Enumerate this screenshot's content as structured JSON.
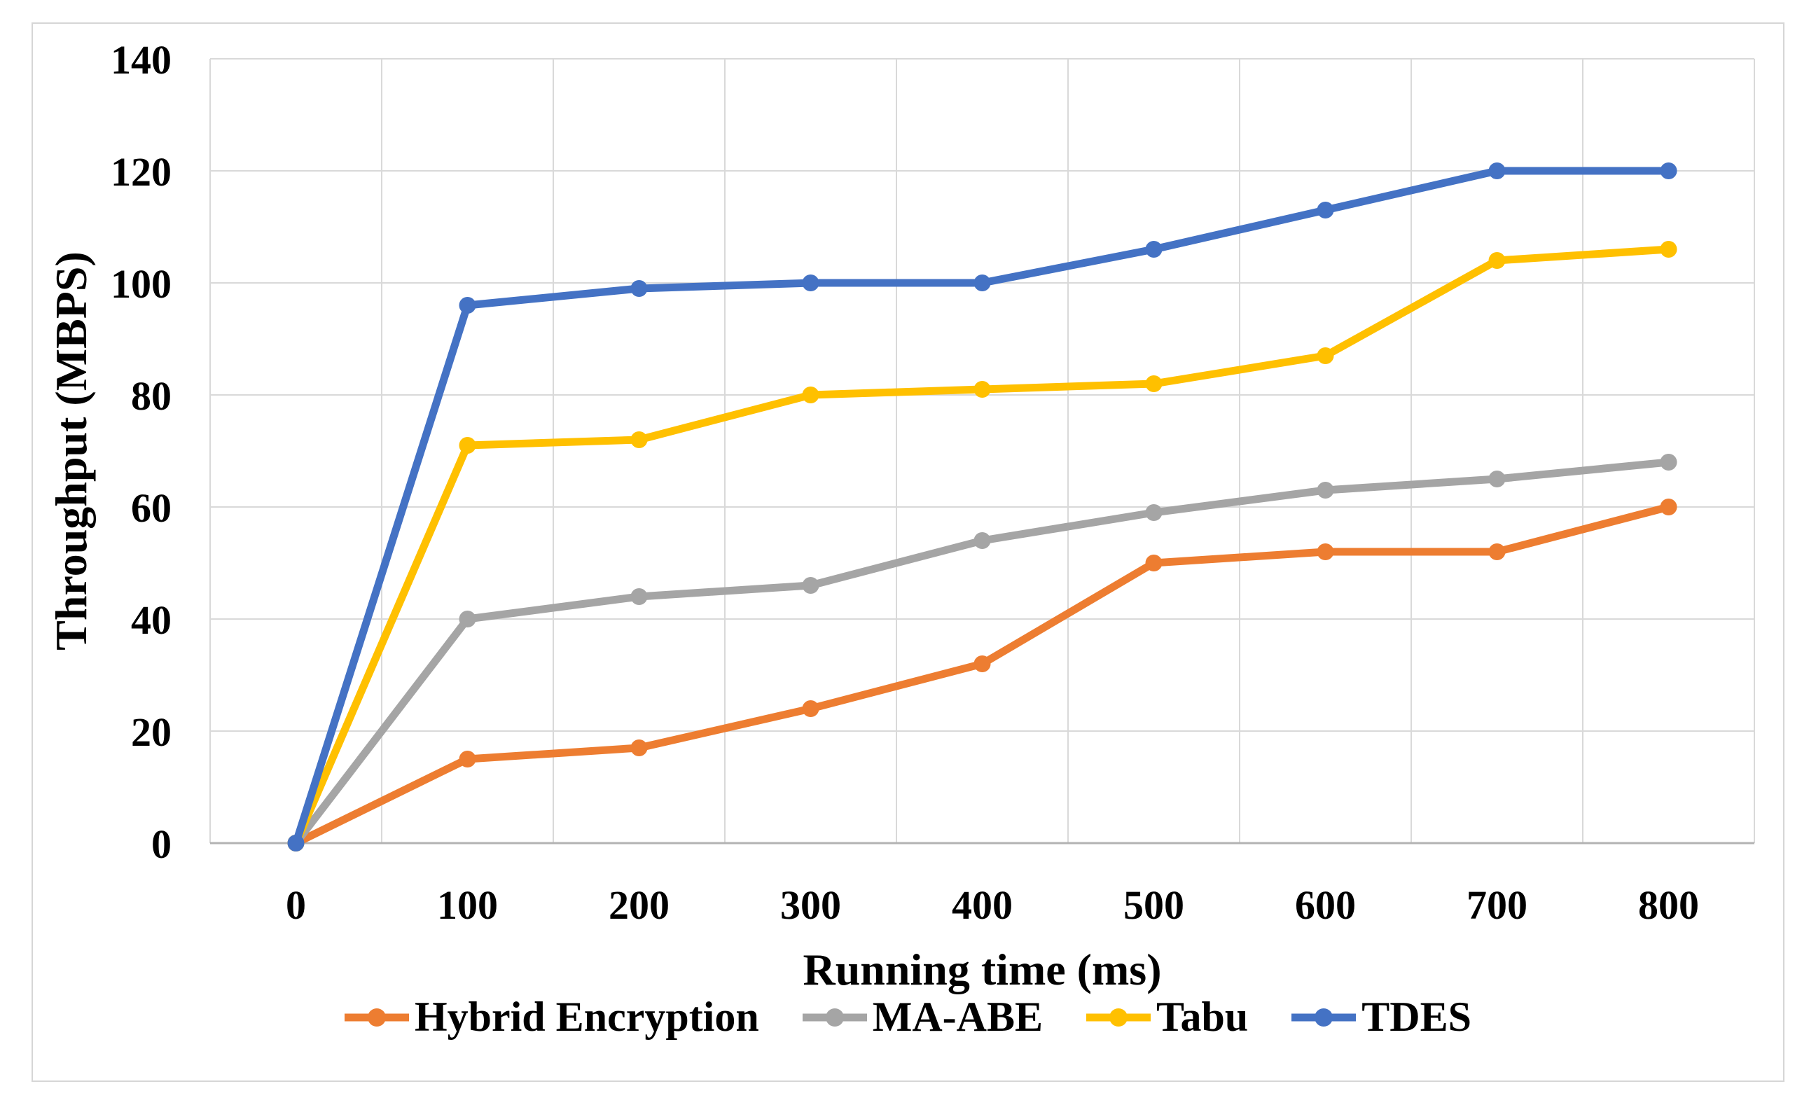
{
  "chart_data": {
    "type": "line",
    "title": "",
    "xlabel": "Running time (ms)",
    "ylabel": "Throughput (MBPS)",
    "categories": [
      "0",
      "100",
      "200",
      "300",
      "400",
      "500",
      "600",
      "700",
      "800"
    ],
    "x": [
      0,
      100,
      200,
      300,
      400,
      500,
      600,
      700,
      800
    ],
    "y_ticks": [
      "0",
      "20",
      "40",
      "60",
      "80",
      "100",
      "120",
      "140"
    ],
    "ylim": [
      0,
      140
    ],
    "ytick_step": 20,
    "grid": "major-horizontal-and-vertical",
    "gridline_color": "#d9d9d9",
    "axis_line_color": "#b3b3b3",
    "background_color": "#ffffff",
    "frame_border_color": "#d6d6d6",
    "legend_position": "bottom",
    "marker_shape": "circle",
    "series": [
      {
        "name": "Hybrid Encryption",
        "color": "#ED7D31",
        "values": [
          0,
          15,
          17,
          24,
          32,
          50,
          52,
          52,
          60
        ]
      },
      {
        "name": "MA-ABE",
        "color": "#A5A5A5",
        "values": [
          0,
          40,
          44,
          46,
          54,
          59,
          63,
          65,
          68
        ]
      },
      {
        "name": "Tabu",
        "color": "#FFC000",
        "values": [
          0,
          71,
          72,
          80,
          81,
          82,
          87,
          104,
          106
        ]
      },
      {
        "name": "TDES",
        "color": "#4472C4",
        "values": [
          0,
          96,
          99,
          100,
          100,
          106,
          113,
          120,
          120
        ]
      }
    ]
  }
}
